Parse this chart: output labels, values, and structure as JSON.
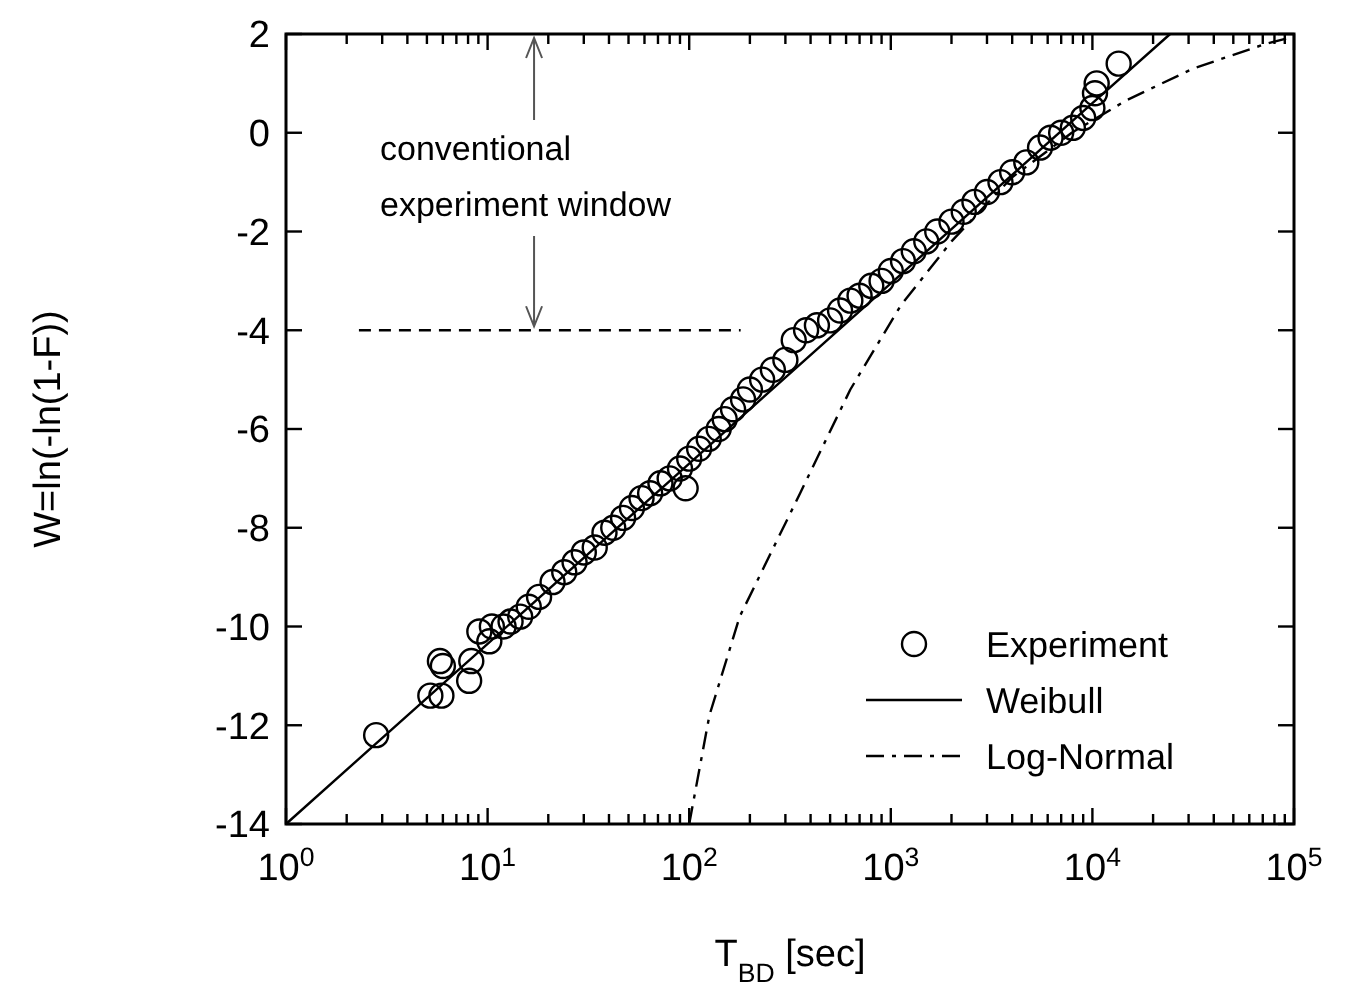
{
  "chart_data": {
    "type": "scatter",
    "xlabel": "T$_{BD}$ [sec]",
    "ylabel": "W=ln(-ln(1-F))",
    "log": "x",
    "xlim": [
      1,
      100000
    ],
    "ylim": [
      -14,
      2
    ],
    "xticks": [
      {
        "value": 1,
        "label": "10$^{0}$"
      },
      {
        "value": 2,
        "label": null
      },
      {
        "value": 3,
        "label": null
      },
      {
        "value": 4,
        "label": null
      },
      {
        "value": 5,
        "label": null
      },
      {
        "value": 6,
        "label": null
      },
      {
        "value": 7,
        "label": null
      },
      {
        "value": 8,
        "label": null
      },
      {
        "value": 9,
        "label": null
      },
      {
        "value": 10,
        "label": "10$^{1}$"
      },
      {
        "value": 20,
        "label": null
      },
      {
        "value": 30,
        "label": null
      },
      {
        "value": 40,
        "label": null
      },
      {
        "value": 50,
        "label": null
      },
      {
        "value": 60,
        "label": null
      },
      {
        "value": 70,
        "label": null
      },
      {
        "value": 80,
        "label": null
      },
      {
        "value": 90,
        "label": null
      },
      {
        "value": 100,
        "label": "10$^{2}$"
      },
      {
        "value": 200,
        "label": null
      },
      {
        "value": 300,
        "label": null
      },
      {
        "value": 400,
        "label": null
      },
      {
        "value": 500,
        "label": null
      },
      {
        "value": 600,
        "label": null
      },
      {
        "value": 700,
        "label": null
      },
      {
        "value": 800,
        "label": null
      },
      {
        "value": 900,
        "label": null
      },
      {
        "value": 1000,
        "label": "10$^{3}$"
      },
      {
        "value": 2000,
        "label": null
      },
      {
        "value": 3000,
        "label": null
      },
      {
        "value": 4000,
        "label": null
      },
      {
        "value": 5000,
        "label": null
      },
      {
        "value": 6000,
        "label": null
      },
      {
        "value": 7000,
        "label": null
      },
      {
        "value": 8000,
        "label": null
      },
      {
        "value": 9000,
        "label": null
      },
      {
        "value": 10000,
        "label": "10$^{4}$"
      },
      {
        "value": 20000,
        "label": null
      },
      {
        "value": 30000,
        "label": null
      },
      {
        "value": 40000,
        "label": null
      },
      {
        "value": 50000,
        "label": null
      },
      {
        "value": 60000,
        "label": null
      },
      {
        "value": 70000,
        "label": null
      },
      {
        "value": 80000,
        "label": null
      },
      {
        "value": 90000,
        "label": null
      },
      {
        "value": 100000,
        "label": "10$^{5}$"
      }
    ],
    "yticks": [
      -14,
      -12,
      -10,
      -8,
      -6,
      -4,
      -2,
      0,
      2
    ],
    "grid": false,
    "legend": "bottom right",
    "annotations": [
      {
        "text": "conventional experiment window",
        "x": 17,
        "y": -4
      }
    ],
    "series": [
      {
        "name": "Experiment",
        "marker": "circle",
        "color": "#000000",
        "x": [
          2.8,
          5.2,
          5.9,
          5.8,
          6.0,
          8.1,
          8.3,
          9.1,
          10.2,
          10.5,
          12,
          13,
          14.5,
          16,
          18,
          21,
          24,
          27,
          30,
          34,
          38,
          42,
          47,
          52,
          58,
          64,
          72,
          80,
          90,
          96,
          100,
          112,
          125,
          140,
          150,
          165,
          185,
          200,
          230,
          260,
          300,
          330,
          380,
          430,
          500,
          560,
          630,
          700,
          800,
          900,
          1000,
          1150,
          1300,
          1500,
          1700,
          2000,
          2300,
          2600,
          3000,
          3500,
          4000,
          4700,
          5500,
          6200,
          7000,
          8000,
          9000,
          10000,
          10300,
          10500,
          13500
        ],
        "values": [
          -12.2,
          -11.4,
          -11.4,
          -10.7,
          -10.8,
          -11.1,
          -10.7,
          -10.1,
          -10.3,
          -10.0,
          -10.0,
          -9.9,
          -9.8,
          -9.6,
          -9.4,
          -9.1,
          -8.9,
          -8.7,
          -8.5,
          -8.4,
          -8.1,
          -8.0,
          -7.8,
          -7.6,
          -7.4,
          -7.3,
          -7.1,
          -7.0,
          -6.8,
          -7.2,
          -6.6,
          -6.4,
          -6.2,
          -6.0,
          -5.8,
          -5.6,
          -5.4,
          -5.2,
          -5.0,
          -4.8,
          -4.6,
          -4.2,
          -4.0,
          -3.9,
          -3.8,
          -3.6,
          -3.4,
          -3.3,
          -3.1,
          -3.0,
          -2.8,
          -2.6,
          -2.4,
          -2.2,
          -2.0,
          -1.8,
          -1.6,
          -1.4,
          -1.2,
          -1.0,
          -0.8,
          -0.6,
          -0.3,
          -0.1,
          0.0,
          0.1,
          0.3,
          0.5,
          0.8,
          1.0,
          1.4
        ]
      },
      {
        "name": "Weibull",
        "type": "line",
        "line_style": "solid",
        "color": "#000000",
        "x": [
          1,
          10,
          100,
          1000,
          10000,
          24300
        ],
        "values": [
          -14,
          -10.35,
          -6.7,
          -3.05,
          0.6,
          2
        ]
      },
      {
        "name": "Log-Normal",
        "type": "line",
        "line_style": "dashdot",
        "color": "#000000",
        "x": [
          100,
          126,
          178,
          355,
          630,
          1120,
          2000,
          4000,
          7900,
          14800,
          31600,
          72400,
          100000
        ],
        "values": [
          -14,
          -11.8,
          -9.8,
          -7.3,
          -5.2,
          -3.5,
          -2.2,
          -0.9,
          0.0,
          0.66,
          1.3,
          1.8,
          1.95
        ]
      },
      {
        "type": "line",
        "line_style": "dashed",
        "color": "#000000",
        "x": [
          2.3,
          180
        ],
        "values": [
          -4,
          -4
        ]
      }
    ]
  }
}
